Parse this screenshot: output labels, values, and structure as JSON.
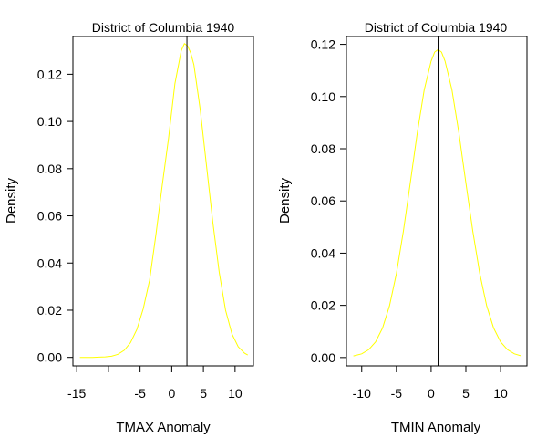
{
  "chart_data": [
    {
      "type": "line",
      "title": "District of Columbia 1940",
      "xlabel": "TMAX Anomaly",
      "ylabel": "Density",
      "xlim": [
        -15.6,
        12.9
      ],
      "ylim": [
        -0.0036,
        0.136
      ],
      "x_ticks": [
        -15,
        -10,
        -5,
        0,
        5,
        10
      ],
      "x_tick_labels": [
        "-15",
        "",
        "-5",
        "0",
        "5",
        "10"
      ],
      "y_ticks": [
        0.0,
        0.02,
        0.04,
        0.06,
        0.08,
        0.1,
        0.12
      ],
      "y_tick_labels": [
        "0.00",
        "0.02",
        "0.04",
        "0.06",
        "0.08",
        "0.10",
        "0.12"
      ],
      "vline_x": 2.4,
      "series": [
        {
          "color": "#ffff00",
          "x": [
            -14.5,
            -13.5,
            -12.5,
            -11.5,
            -10.5,
            -9.5,
            -8.5,
            -7.5,
            -6.5,
            -5.5,
            -4.5,
            -3.5,
            -2.5,
            -1.5,
            -0.5,
            0.5,
            1.5,
            2.0,
            2.5,
            3.0,
            3.5,
            4.5,
            5.5,
            6.5,
            7.5,
            8.5,
            9.5,
            10.5,
            11.5,
            12.0
          ],
          "y": [
            0.0,
            0.0,
            0.0,
            0.0001,
            0.0002,
            0.0005,
            0.0013,
            0.003,
            0.0063,
            0.0119,
            0.0206,
            0.0327,
            0.052,
            0.073,
            0.093,
            0.116,
            0.13,
            0.133,
            0.132,
            0.129,
            0.124,
            0.105,
            0.081,
            0.057,
            0.036,
            0.02,
            0.01,
            0.0045,
            0.0018,
            0.001
          ]
        }
      ]
    },
    {
      "type": "line",
      "title": "District of Columbia 1940",
      "xlabel": "TMIN Anomaly",
      "ylabel": "Density",
      "xlim": [
        -12.2,
        13.8
      ],
      "ylim": [
        -0.0032,
        0.123
      ],
      "x_ticks": [
        -10,
        -5,
        0,
        5,
        10
      ],
      "x_tick_labels": [
        "-10",
        "-5",
        "0",
        "5",
        "10"
      ],
      "y_ticks": [
        0.0,
        0.02,
        0.04,
        0.06,
        0.08,
        0.1,
        0.12
      ],
      "y_tick_labels": [
        "0.00",
        "0.02",
        "0.04",
        "0.06",
        "0.08",
        "0.10",
        "0.12"
      ],
      "vline_x": 1.0,
      "series": [
        {
          "color": "#ffff00",
          "x": [
            -11.2,
            -10.0,
            -9.0,
            -8.0,
            -7.0,
            -6.0,
            -5.0,
            -4.0,
            -3.0,
            -2.0,
            -1.0,
            0.0,
            0.5,
            1.0,
            1.5,
            2.0,
            3.0,
            4.0,
            5.0,
            6.0,
            7.0,
            8.0,
            9.0,
            10.0,
            11.0,
            12.0,
            13.0
          ],
          "y": [
            0.0006,
            0.0014,
            0.003,
            0.006,
            0.0113,
            0.0198,
            0.0322,
            0.0484,
            0.067,
            0.086,
            0.1025,
            0.1136,
            0.117,
            0.118,
            0.117,
            0.1136,
            0.1025,
            0.086,
            0.067,
            0.0484,
            0.0322,
            0.0198,
            0.0113,
            0.006,
            0.003,
            0.0014,
            0.0006
          ]
        }
      ]
    }
  ]
}
